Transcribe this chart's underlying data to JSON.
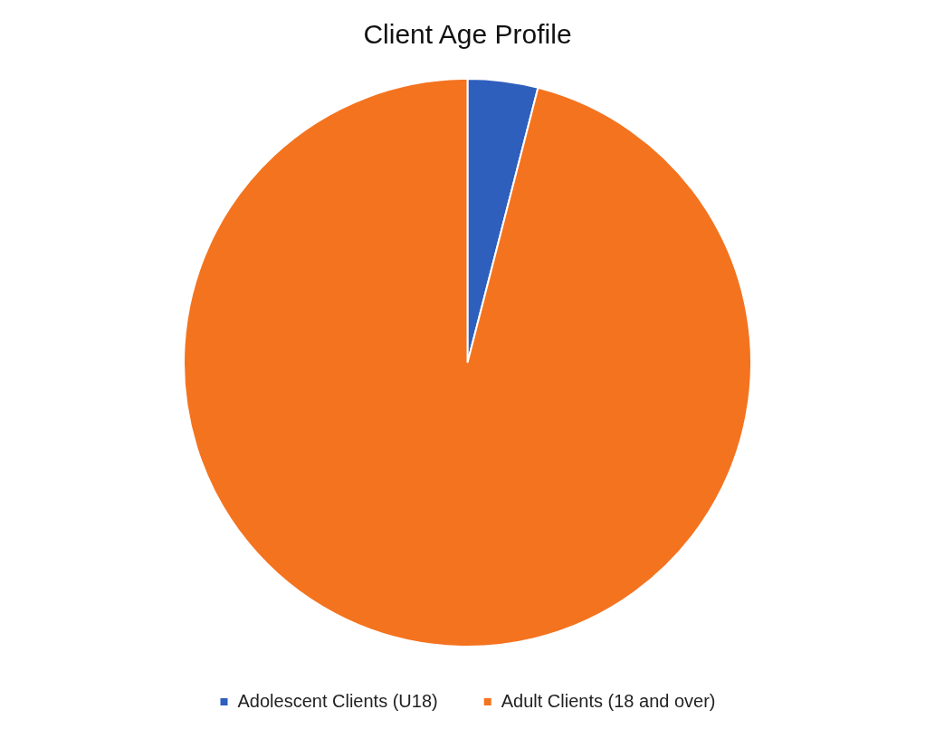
{
  "chart_data": {
    "type": "pie",
    "title": "Client Age Profile",
    "categories": [
      "Adolescent Clients (U18)",
      "Adult Clients (18 and over)"
    ],
    "values": [
      4,
      96
    ],
    "colors": [
      "#2e5fbd",
      "#f4731f"
    ],
    "legend": "bottom"
  }
}
